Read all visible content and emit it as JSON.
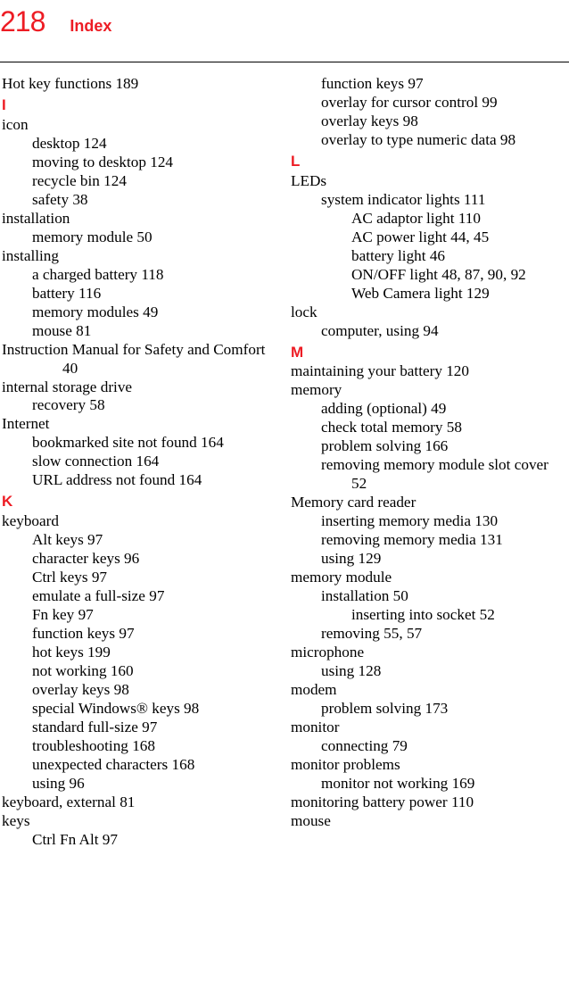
{
  "header": {
    "pageNumber": "218",
    "title": "Index"
  },
  "left": [
    {
      "t": "e0",
      "text": "Hot key functions",
      "pg": "189"
    },
    {
      "t": "letter",
      "text": "I"
    },
    {
      "t": "e0",
      "text": "icon"
    },
    {
      "t": "e1",
      "text": "desktop",
      "pg": "124"
    },
    {
      "t": "e1",
      "text": "moving to desktop",
      "pg": "124"
    },
    {
      "t": "e1",
      "text": "recycle bin",
      "pg": "124"
    },
    {
      "t": "e1",
      "text": "safety",
      "pg": "38"
    },
    {
      "t": "e0",
      "text": "installation"
    },
    {
      "t": "e1",
      "text": "memory module",
      "pg": "50"
    },
    {
      "t": "e0",
      "text": "installing"
    },
    {
      "t": "e1",
      "text": "a charged battery",
      "pg": "118"
    },
    {
      "t": "e1",
      "text": "battery",
      "pg": "116"
    },
    {
      "t": "e1",
      "text": "memory modules",
      "pg": "49"
    },
    {
      "t": "e1",
      "text": "mouse",
      "pg": "81"
    },
    {
      "t": "e0",
      "text": "Instruction Manual for Safety and Comfort",
      "pg": "40",
      "wrap": true
    },
    {
      "t": "e0",
      "text": "internal storage drive"
    },
    {
      "t": "e1",
      "text": "recovery",
      "pg": "58"
    },
    {
      "t": "e0",
      "text": "Internet"
    },
    {
      "t": "e1",
      "text": "bookmarked site not found",
      "pg": "164"
    },
    {
      "t": "e1",
      "text": "slow connection",
      "pg": "164"
    },
    {
      "t": "e1",
      "text": "URL address not found",
      "pg": "164"
    },
    {
      "t": "letter",
      "text": "K"
    },
    {
      "t": "e0",
      "text": "keyboard"
    },
    {
      "t": "e1",
      "text": "Alt keys",
      "pg": "97"
    },
    {
      "t": "e1",
      "text": "character keys",
      "pg": "96"
    },
    {
      "t": "e1",
      "text": "Ctrl keys",
      "pg": "97"
    },
    {
      "t": "e1",
      "text": "emulate a full-size",
      "pg": "97"
    },
    {
      "t": "e1",
      "text": "Fn key",
      "pg": "97"
    },
    {
      "t": "e1",
      "text": "function keys",
      "pg": "97"
    },
    {
      "t": "e1",
      "text": "hot keys",
      "pg": "199"
    },
    {
      "t": "e1",
      "text": "not working",
      "pg": "160"
    },
    {
      "t": "e1",
      "text": "overlay keys",
      "pg": "98"
    },
    {
      "t": "e1",
      "text": "special Windows® keys",
      "pg": "98"
    },
    {
      "t": "e1",
      "text": "standard full-size",
      "pg": "97"
    },
    {
      "t": "e1",
      "text": "troubleshooting",
      "pg": "168"
    },
    {
      "t": "e1",
      "text": "unexpected characters",
      "pg": "168"
    },
    {
      "t": "e1",
      "text": "using",
      "pg": "96"
    },
    {
      "t": "e0",
      "text": "keyboard, external",
      "pg": "81"
    },
    {
      "t": "e0",
      "text": "keys"
    },
    {
      "t": "e1",
      "text": "Ctrl Fn Alt",
      "pg": "97"
    }
  ],
  "right": [
    {
      "t": "e1",
      "text": "function keys",
      "pg": "97"
    },
    {
      "t": "e1",
      "text": "overlay for cursor control",
      "pg": "99"
    },
    {
      "t": "e1",
      "text": "overlay keys",
      "pg": "98"
    },
    {
      "t": "e1",
      "text": "overlay to type numeric data",
      "pg": "98"
    },
    {
      "t": "letter",
      "text": "L"
    },
    {
      "t": "e0",
      "text": "LEDs"
    },
    {
      "t": "e1",
      "text": "system indicator lights",
      "pg": "111"
    },
    {
      "t": "e2",
      "text": "AC adaptor light",
      "pg": "110"
    },
    {
      "t": "e2",
      "text": "AC power light",
      "pg": "44, 45"
    },
    {
      "t": "e2",
      "text": "battery light",
      "pg": "46"
    },
    {
      "t": "e2",
      "text": "ON/OFF light",
      "pg": "48, 87, 90, 92",
      "wrap": true
    },
    {
      "t": "e2",
      "text": "Web Camera light",
      "pg": "129"
    },
    {
      "t": "e0",
      "text": "lock"
    },
    {
      "t": "e1",
      "text": "computer, using",
      "pg": "94"
    },
    {
      "t": "letter",
      "text": "M"
    },
    {
      "t": "e0",
      "text": "maintaining your battery",
      "pg": "120"
    },
    {
      "t": "e0",
      "text": "memory"
    },
    {
      "t": "e1",
      "text": "adding (optional)",
      "pg": "49"
    },
    {
      "t": "e1",
      "text": "check total memory",
      "pg": "58"
    },
    {
      "t": "e1",
      "text": "problem solving",
      "pg": "166"
    },
    {
      "t": "e1",
      "text": "removing memory module slot cover",
      "pg": "52",
      "wrap": true
    },
    {
      "t": "e0",
      "text": "Memory card reader"
    },
    {
      "t": "e1",
      "text": "inserting memory media",
      "pg": "130"
    },
    {
      "t": "e1",
      "text": "removing memory media",
      "pg": "131"
    },
    {
      "t": "e1",
      "text": "using",
      "pg": "129"
    },
    {
      "t": "e0",
      "text": "memory module"
    },
    {
      "t": "e1",
      "text": "installation",
      "pg": "50"
    },
    {
      "t": "e2",
      "text": "inserting into socket",
      "pg": "52"
    },
    {
      "t": "e1",
      "text": "removing",
      "pg": "55, 57"
    },
    {
      "t": "e0",
      "text": "microphone"
    },
    {
      "t": "e1",
      "text": "using",
      "pg": "128"
    },
    {
      "t": "e0",
      "text": "modem"
    },
    {
      "t": "e1",
      "text": "problem solving",
      "pg": "173"
    },
    {
      "t": "e0",
      "text": "monitor"
    },
    {
      "t": "e1",
      "text": "connecting",
      "pg": "79"
    },
    {
      "t": "e0",
      "text": "monitor problems"
    },
    {
      "t": "e1",
      "text": "monitor not working",
      "pg": "169"
    },
    {
      "t": "e0",
      "text": "monitoring battery power",
      "pg": "110"
    },
    {
      "t": "e0",
      "text": "mouse"
    }
  ]
}
